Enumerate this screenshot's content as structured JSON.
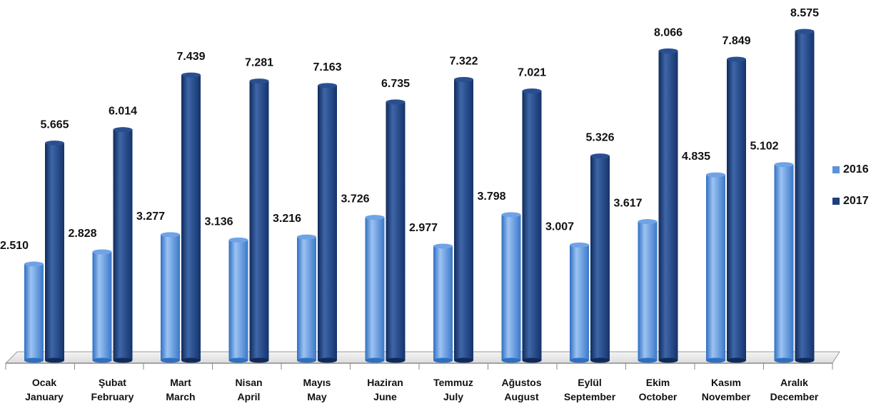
{
  "title_fragment": "",
  "chart_data": {
    "type": "bar",
    "categories": [
      [
        "Ocak",
        "January"
      ],
      [
        "Şubat",
        "February"
      ],
      [
        "Mart",
        "March"
      ],
      [
        "Nisan",
        "April"
      ],
      [
        "Mayıs",
        "May"
      ],
      [
        "Haziran",
        "June"
      ],
      [
        "Temmuz",
        "July"
      ],
      [
        "Ağustos",
        "August"
      ],
      [
        "Eylül",
        "September"
      ],
      [
        "Ekim",
        "October"
      ],
      [
        "Kasım",
        "November"
      ],
      [
        "Aralık",
        "December"
      ]
    ],
    "series": [
      {
        "name": "2016",
        "color": "#5b93db",
        "values": [
          2510,
          2828,
          3277,
          3136,
          3216,
          3726,
          2977,
          3798,
          3007,
          3617,
          4835,
          5102
        ],
        "labels": [
          "2.510",
          "2.828",
          "3.277",
          "3.136",
          "3.216",
          "3.726",
          "2.977",
          "3.798",
          "3.007",
          "3.617",
          "4.835",
          "5.102"
        ]
      },
      {
        "name": "2017",
        "color": "#1f3f7a",
        "values": [
          5665,
          6014,
          7439,
          7281,
          7163,
          6735,
          7322,
          7021,
          5326,
          8066,
          7849,
          8575
        ],
        "labels": [
          "5.665",
          "6.014",
          "7.439",
          "7.281",
          "7.163",
          "6.735",
          "7.322",
          "7.021",
          "5.326",
          "8.066",
          "7.849",
          "8.575"
        ]
      }
    ],
    "ylim": [
      0,
      8575
    ],
    "legend_position": "right",
    "grid": false
  }
}
